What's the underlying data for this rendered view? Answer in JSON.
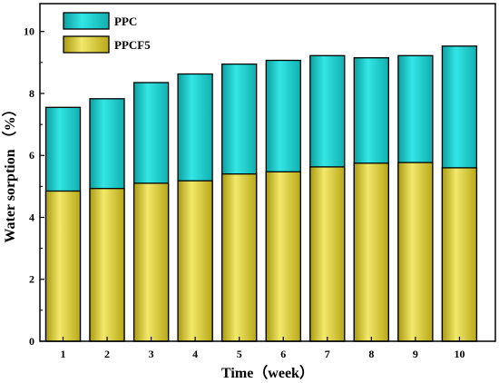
{
  "chart_data": {
    "type": "bar",
    "categories": [
      "1",
      "2",
      "3",
      "4",
      "5",
      "6",
      "7",
      "8",
      "9",
      "10"
    ],
    "series": [
      {
        "name": "PPC",
        "color": "#22D3D3",
        "values": [
          7.55,
          7.83,
          8.35,
          8.63,
          8.95,
          9.07,
          9.22,
          9.15,
          9.22,
          9.53
        ]
      },
      {
        "name": "PPCF5",
        "color": "#E5D84A",
        "values": [
          4.85,
          4.93,
          5.1,
          5.18,
          5.4,
          5.47,
          5.63,
          5.75,
          5.77,
          5.6
        ]
      }
    ],
    "overlay": true,
    "xlabel": "Time（week）",
    "ylabel": "Water sorption （%）",
    "ylim": [
      0,
      10.9
    ],
    "yticks": [
      0,
      2,
      4,
      6,
      8,
      10
    ],
    "grid": false,
    "legend_position": "top-left"
  }
}
